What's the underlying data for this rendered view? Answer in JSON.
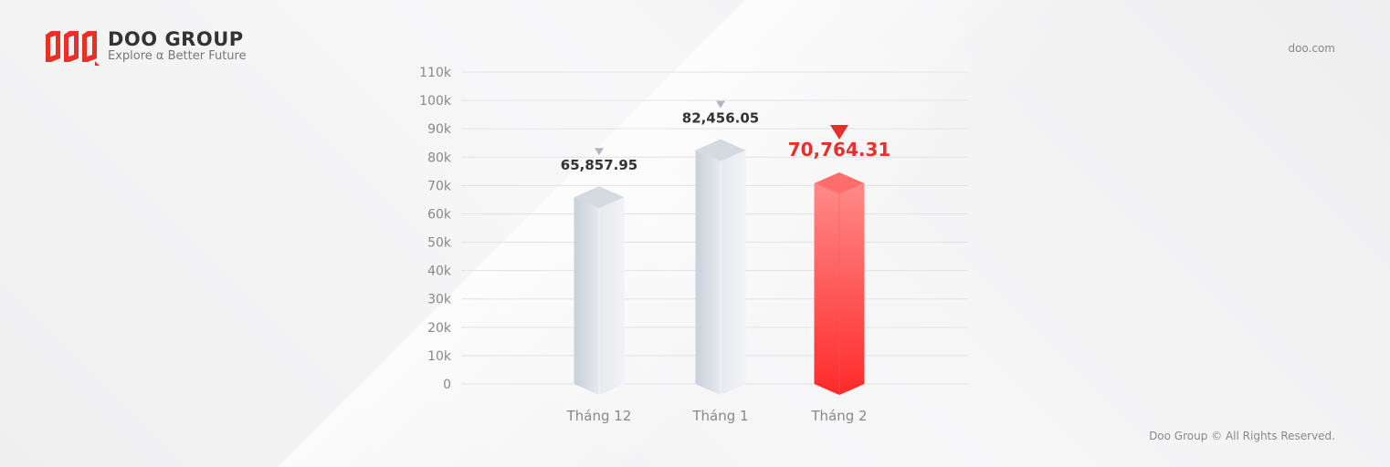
{
  "brand": {
    "name": "DOO GROUP",
    "tagline": "Explore α Better Future",
    "logo_text": "DOO"
  },
  "header": {
    "site": "doo.com"
  },
  "footer": {
    "copyright": "Doo Group © All Rights Reserved."
  },
  "colors": {
    "accent": "#e8302a",
    "bar_default": "#e4e7ec",
    "label": "#333333",
    "axis_text": "#888888",
    "marker_default": "#aab8c6"
  },
  "chart_data": {
    "type": "bar",
    "categories": [
      "Tháng 12",
      "Tháng 1",
      "Tháng 2"
    ],
    "values": [
      65857.95,
      82456.05,
      70764.31
    ],
    "value_labels": [
      "65,857.95",
      "82,456.05",
      "70,764.31"
    ],
    "highlight_index": 2,
    "yticks": [
      "0",
      "10k",
      "20k",
      "30k",
      "40k",
      "50k",
      "60k",
      "70k",
      "80k",
      "90k",
      "100k",
      "110k"
    ],
    "ylim": [
      0,
      110000
    ],
    "grid": true,
    "title": "",
    "xlabel": "",
    "ylabel": ""
  }
}
